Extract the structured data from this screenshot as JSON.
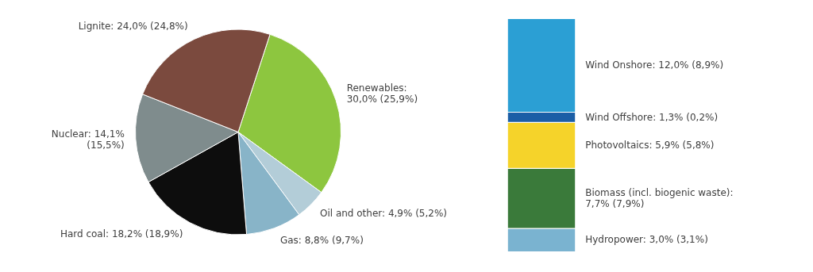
{
  "chart_data": [
    {
      "type": "pie",
      "categories": [
        "Renewables:\n30,0% (25,9%)",
        "Oil and other: 4,9% (5,2%)",
        "Gas: 8,8% (9,7%)",
        "Hard coal: 18,2% (18,9%)",
        "Nuclear: 14,1%\n(15,5%)",
        "Lignite: 24,0% (24,8%)"
      ],
      "values": [
        30.0,
        4.9,
        8.8,
        18.2,
        14.1,
        24.0
      ],
      "colors": [
        "#8dc63f",
        "#b3cdd8",
        "#88b4c8",
        "#0d0d0d",
        "#7f8c8d",
        "#7b4a3e"
      ]
    },
    {
      "type": "bar",
      "stacked": true,
      "tick_labels": false,
      "grid": false,
      "ylim": [
        0,
        30
      ],
      "series": [
        {
          "name": "Wind Onshore: 12,0% (8,9%)",
          "color": "#2b9fd4",
          "values": [
            12.0
          ]
        },
        {
          "name": "Wind Offshore: 1,3% (0,2%)",
          "color": "#1b5ea6",
          "values": [
            1.3
          ]
        },
        {
          "name": "Photovoltaics: 5,9% (5,8%)",
          "color": "#f5d32a",
          "values": [
            5.9
          ]
        },
        {
          "name": "Biomass (incl. biogenic waste):\n7,7% (7,9%)",
          "color": "#3a7a3a",
          "values": [
            7.7
          ]
        },
        {
          "name": "Hydropower: 3,0% (3,1%)",
          "color": "#7ab3d0",
          "values": [
            3.0
          ]
        }
      ]
    }
  ]
}
